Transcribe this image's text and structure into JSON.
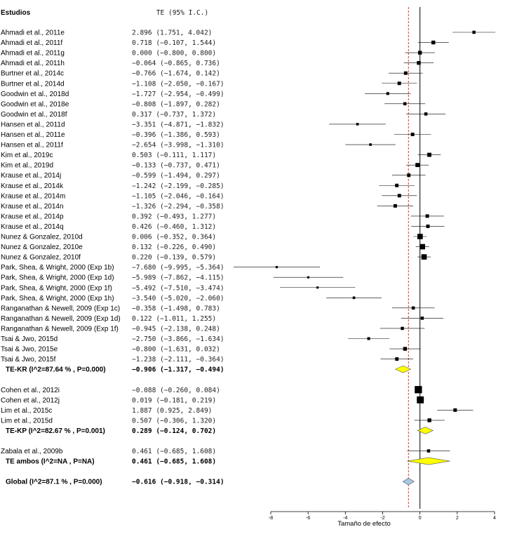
{
  "chart_data": {
    "type": "forest",
    "study_header": "Estudios",
    "effect_header": "TE (95% I.C.)",
    "xlabel": "Tamaño de efecto",
    "xlim": [
      -8,
      4
    ],
    "xticks": [
      -8,
      -6,
      -4,
      -2,
      0,
      2,
      4
    ],
    "xtick_labels": [
      "-8",
      "-6",
      "-4",
      "-2",
      "0",
      "2",
      "4"
    ],
    "reference_line": 0,
    "overall_line": -0.616,
    "rows": [
      {
        "kind": "study",
        "label": "Ahmadi et al., 2011e",
        "est": 2.896,
        "lo": 1.751,
        "hi": 4.042,
        "text": "2.896  (1.751,  4.042)",
        "weight": 1
      },
      {
        "kind": "study",
        "label": "Ahmadi et al., 2011f",
        "est": 0.718,
        "lo": -0.107,
        "hi": 1.544,
        "text": "0.718  (−0.107,  1.544)",
        "weight": 1.2
      },
      {
        "kind": "study",
        "label": "Ahmadi et al., 2011g",
        "est": 0.0,
        "lo": -0.8,
        "hi": 0.8,
        "text": "0.000  (−0.800,  0.800)",
        "weight": 1.2
      },
      {
        "kind": "study",
        "label": "Ahmadi et al., 2011h",
        "est": -0.064,
        "lo": -0.865,
        "hi": 0.736,
        "text": "−0.064  (−0.865,  0.736)",
        "weight": 1.2
      },
      {
        "kind": "study",
        "label": "Burtner et al., 2014c",
        "est": -0.766,
        "lo": -1.674,
        "hi": 0.142,
        "text": "−0.766  (−1.674,  0.142)",
        "weight": 1.1
      },
      {
        "kind": "study",
        "label": "Burtner et al., 2014d",
        "est": -1.108,
        "lo": -2.05,
        "hi": -0.167,
        "text": "−1.108  (−2.050,  −0.167)",
        "weight": 1.1
      },
      {
        "kind": "study",
        "label": "Goodwin et al., 2018d",
        "est": -1.727,
        "lo": -2.954,
        "hi": -0.499,
        "text": "−1.727  (−2.954,  −0.499)",
        "weight": 0.9
      },
      {
        "kind": "study",
        "label": "Goodwin et al., 2018e",
        "est": -0.808,
        "lo": -1.897,
        "hi": 0.282,
        "text": "−0.808  (−1.897,  0.282)",
        "weight": 1
      },
      {
        "kind": "study",
        "label": "Goodwin et al., 2018f",
        "est": 0.317,
        "lo": -0.737,
        "hi": 1.372,
        "text": "0.317  (−0.737,  1.372)",
        "weight": 1
      },
      {
        "kind": "study",
        "label": "Hansen et al., 2011d",
        "est": -3.351,
        "lo": -4.871,
        "hi": -1.832,
        "text": "−3.351  (−4.871,  −1.832)",
        "weight": 0.8
      },
      {
        "kind": "study",
        "label": "Hansen et al., 2011e",
        "est": -0.396,
        "lo": -1.386,
        "hi": 0.593,
        "text": "−0.396  (−1.386,  0.593)",
        "weight": 1.1
      },
      {
        "kind": "study",
        "label": "Hansen et al., 2011f",
        "est": -2.654,
        "lo": -3.998,
        "hi": -1.31,
        "text": "−2.654  (−3.998,  −1.310)",
        "weight": 0.8
      },
      {
        "kind": "study",
        "label": "Kim et al., 2019c",
        "est": 0.503,
        "lo": -0.111,
        "hi": 1.117,
        "text": "0.503  (−0.111,  1.117)",
        "weight": 1.3
      },
      {
        "kind": "study",
        "label": "Kim et al., 2019d",
        "est": -0.133,
        "lo": -0.737,
        "hi": 0.471,
        "text": "−0.133  (−0.737,  0.471)",
        "weight": 1.3
      },
      {
        "kind": "study",
        "label": "Krause et al., 2014j",
        "est": -0.599,
        "lo": -1.494,
        "hi": 0.297,
        "text": "−0.599  (−1.494,  0.297)",
        "weight": 1.1
      },
      {
        "kind": "study",
        "label": "Krause et al., 2014k",
        "est": -1.242,
        "lo": -2.199,
        "hi": -0.285,
        "text": "−1.242  (−2.199,  −0.285)",
        "weight": 1.1
      },
      {
        "kind": "study",
        "label": "Krause et al., 2014m",
        "est": -1.105,
        "lo": -2.046,
        "hi": -0.164,
        "text": "−1.105  (−2.046,  −0.164)",
        "weight": 1.1
      },
      {
        "kind": "study",
        "label": "Krause et al., 2014n",
        "est": -1.326,
        "lo": -2.294,
        "hi": -0.358,
        "text": "−1.326  (−2.294,  −0.358)",
        "weight": 1.1
      },
      {
        "kind": "study",
        "label": "Krause et al., 2014p",
        "est": 0.392,
        "lo": -0.493,
        "hi": 1.277,
        "text": "0.392  (−0.493,  1.277)",
        "weight": 1.1
      },
      {
        "kind": "study",
        "label": "Krause et al., 2014q",
        "est": 0.426,
        "lo": -0.46,
        "hi": 1.312,
        "text": "0.426  (−0.460,  1.312)",
        "weight": 1.1
      },
      {
        "kind": "study",
        "label": "Nunez & Gonzalez, 2010d",
        "est": 0.006,
        "lo": -0.352,
        "hi": 0.364,
        "text": "0.006  (−0.352,  0.364)",
        "weight": 1.7
      },
      {
        "kind": "study",
        "label": "Nunez & Gonzalez, 2010e",
        "est": 0.132,
        "lo": -0.226,
        "hi": 0.49,
        "text": "0.132  (−0.226,  0.490)",
        "weight": 1.7
      },
      {
        "kind": "study",
        "label": "Nunez & Gonzalez, 2010f",
        "est": 0.22,
        "lo": -0.139,
        "hi": 0.579,
        "text": "0.220  (−0.139,  0.579)",
        "weight": 1.7
      },
      {
        "kind": "study",
        "label": "Park, Shea, & Wright, 2000 (Exp 1b)",
        "est": -7.68,
        "lo": -9.995,
        "hi": -5.364,
        "text": "−7.680  (−9.995,  −5.364)",
        "weight": 0.7
      },
      {
        "kind": "study",
        "label": "Park, Shea, & Wright, 2000 (Exp 1d)",
        "est": -5.989,
        "lo": -7.862,
        "hi": -4.115,
        "text": "−5.989  (−7.862,  −4.115)",
        "weight": 0.7
      },
      {
        "kind": "study",
        "label": "Park, Shea, & Wright, 2000 (Exp 1f)",
        "est": -5.492,
        "lo": -7.51,
        "hi": -3.474,
        "text": "−5.492  (−7.510,  −3.474)",
        "weight": 0.7
      },
      {
        "kind": "study",
        "label": "Park, Shea, & Wright, 2000 (Exp 1h)",
        "est": -3.54,
        "lo": -5.02,
        "hi": -2.06,
        "text": "−3.540  (−5.020,  −2.060)",
        "weight": 0.8
      },
      {
        "kind": "study",
        "label": "Ranganathan & Newell, 2009 (Exp 1c)",
        "est": -0.358,
        "lo": -1.498,
        "hi": 0.783,
        "text": "−0.358  (−1.498,  0.783)",
        "weight": 1
      },
      {
        "kind": "study",
        "label": "Ranganathan & Newell, 2009 (Exp 1d)",
        "est": 0.122,
        "lo": -1.011,
        "hi": 1.255,
        "text": "0.122  (−1.011,  1.255)",
        "weight": 1
      },
      {
        "kind": "study",
        "label": "Ranganathan & Newell, 2009 (Exp 1f)",
        "est": -0.945,
        "lo": -2.138,
        "hi": 0.248,
        "text": "−0.945  (−2.138,  0.248)",
        "weight": 1
      },
      {
        "kind": "study",
        "label": "Tsai & Jwo, 2015d",
        "est": -2.75,
        "lo": -3.866,
        "hi": -1.634,
        "text": "−2.750  (−3.866,  −1.634)",
        "weight": 0.9
      },
      {
        "kind": "study",
        "label": "Tsai & Jwo, 2015e",
        "est": -0.8,
        "lo": -1.631,
        "hi": 0.032,
        "text": "−0.800  (−1.631,  0.032)",
        "weight": 1.2
      },
      {
        "kind": "study",
        "label": "Tsai & Jwo, 2015f",
        "est": -1.238,
        "lo": -2.111,
        "hi": -0.364,
        "text": "−1.238  (−2.111,  −0.364)",
        "weight": 1.1
      },
      {
        "kind": "summary",
        "label": "TE-KR      (I^2=87.64 % , P=0.000)",
        "est": -0.906,
        "lo": -1.317,
        "hi": -0.494,
        "text": "−0.906  (−1.317,  −0.494)",
        "color": "#ffff00"
      },
      {
        "kind": "blank"
      },
      {
        "kind": "study",
        "label": "Cohen et al., 2012i",
        "est": -0.088,
        "lo": -0.26,
        "hi": 0.084,
        "text": "−0.088  (−0.260,  0.084)",
        "weight": 2.3
      },
      {
        "kind": "study",
        "label": "Cohen et al., 2012j",
        "est": 0.019,
        "lo": -0.181,
        "hi": 0.219,
        "text": "0.019  (−0.181,  0.219)",
        "weight": 2.2
      },
      {
        "kind": "study",
        "label": "Lim et al., 2015c",
        "est": 1.887,
        "lo": 0.925,
        "hi": 2.849,
        "text": "1.887  (0.925,  2.849)",
        "weight": 1.1
      },
      {
        "kind": "study",
        "label": "Lim et al., 2015d",
        "est": 0.507,
        "lo": -0.306,
        "hi": 1.32,
        "text": "0.507  (−0.306,  1.320)",
        "weight": 1.2
      },
      {
        "kind": "summary",
        "label": "TE-KP      (I^2=82.67 % , P=0.001)",
        "est": 0.289,
        "lo": -0.124,
        "hi": 0.702,
        "text": "0.289  (−0.124,  0.702)",
        "color": "#ffff00"
      },
      {
        "kind": "blank"
      },
      {
        "kind": "study",
        "label": "Zabala et al., 2009b",
        "est": 0.461,
        "lo": -0.685,
        "hi": 1.608,
        "text": "0.461  (−0.685,  1.608)",
        "weight": 1
      },
      {
        "kind": "summary",
        "label": "TE ambos  (I^2=NA , P=NA)",
        "est": 0.461,
        "lo": -0.685,
        "hi": 1.608,
        "text": "0.461  (−0.685,  1.608)",
        "color": "#ffff00"
      },
      {
        "kind": "blank"
      },
      {
        "kind": "summary",
        "label": "Global (I^2=87.1 % , P=0.000)",
        "est": -0.616,
        "lo": -0.918,
        "hi": -0.314,
        "text": "−0.616  (−0.918,  −0.314)",
        "color": "#a7c6e0"
      }
    ]
  }
}
